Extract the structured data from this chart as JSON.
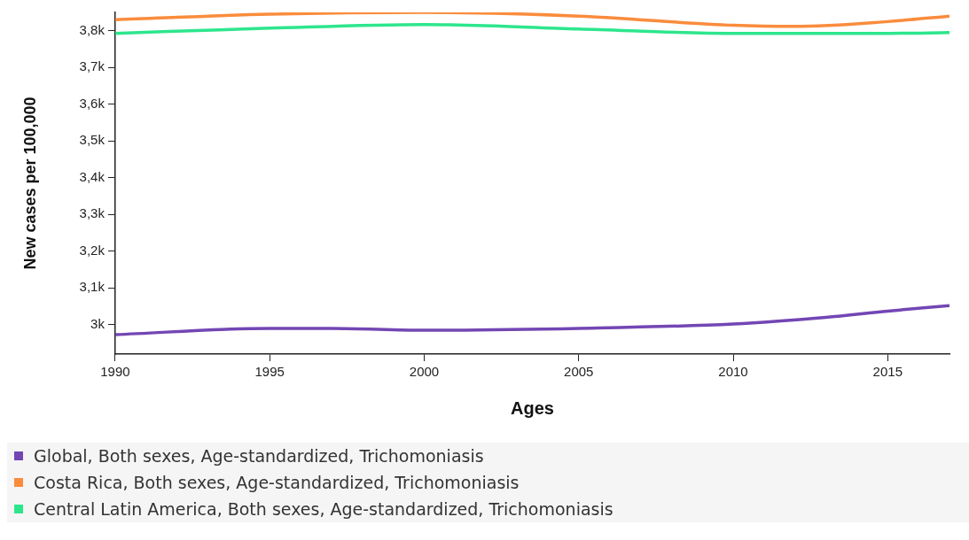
{
  "chart_data": {
    "type": "line",
    "xlabel": "Ages",
    "ylabel": "New cases per 100,000",
    "xlim": [
      1990,
      2017
    ],
    "xticks": [
      1990,
      1995,
      2000,
      2005,
      2010,
      2015
    ],
    "ylim": [
      2920,
      3850
    ],
    "yticks": [
      {
        "value": 3000,
        "label": "3k"
      },
      {
        "value": 3100,
        "label": "3,1k"
      },
      {
        "value": 3200,
        "label": "3,2k"
      },
      {
        "value": 3300,
        "label": "3,3k"
      },
      {
        "value": 3400,
        "label": "3,4k"
      },
      {
        "value": 3500,
        "label": "3,5k"
      },
      {
        "value": 3600,
        "label": "3,6k"
      },
      {
        "value": 3700,
        "label": "3,7k"
      },
      {
        "value": 3800,
        "label": "3,8k"
      }
    ],
    "grid": false,
    "legend": "bottom",
    "marker": "none",
    "line_style": "solid",
    "series": [
      {
        "name": "Global, Both sexes, Age-standardized, Trichomoniasis",
        "color": "#7346b4",
        "x": [
          1990,
          1995,
          1997,
          2000,
          2005,
          2010,
          2013,
          2015,
          2017
        ],
        "values": [
          2973,
          2990,
          2990,
          2985,
          2990,
          3002,
          3020,
          3037,
          3052
        ]
      },
      {
        "name": "Costa Rica, Both sexes, Age-standardized, Trichomoniasis",
        "color": "#fa8c3c",
        "x": [
          1990,
          1995,
          2000,
          2005,
          2010,
          2012,
          2015,
          2017
        ],
        "values": [
          3830,
          3845,
          3850,
          3840,
          3815,
          3812,
          3825,
          3840
        ]
      },
      {
        "name": "Central Latin America, Both sexes, Age-standardized, Trichomoniasis",
        "color": "#2de68c",
        "x": [
          1990,
          1995,
          2000,
          2005,
          2010,
          2015,
          2017
        ],
        "values": [
          3793,
          3807,
          3817,
          3805,
          3793,
          3793,
          3795
        ]
      }
    ]
  }
}
